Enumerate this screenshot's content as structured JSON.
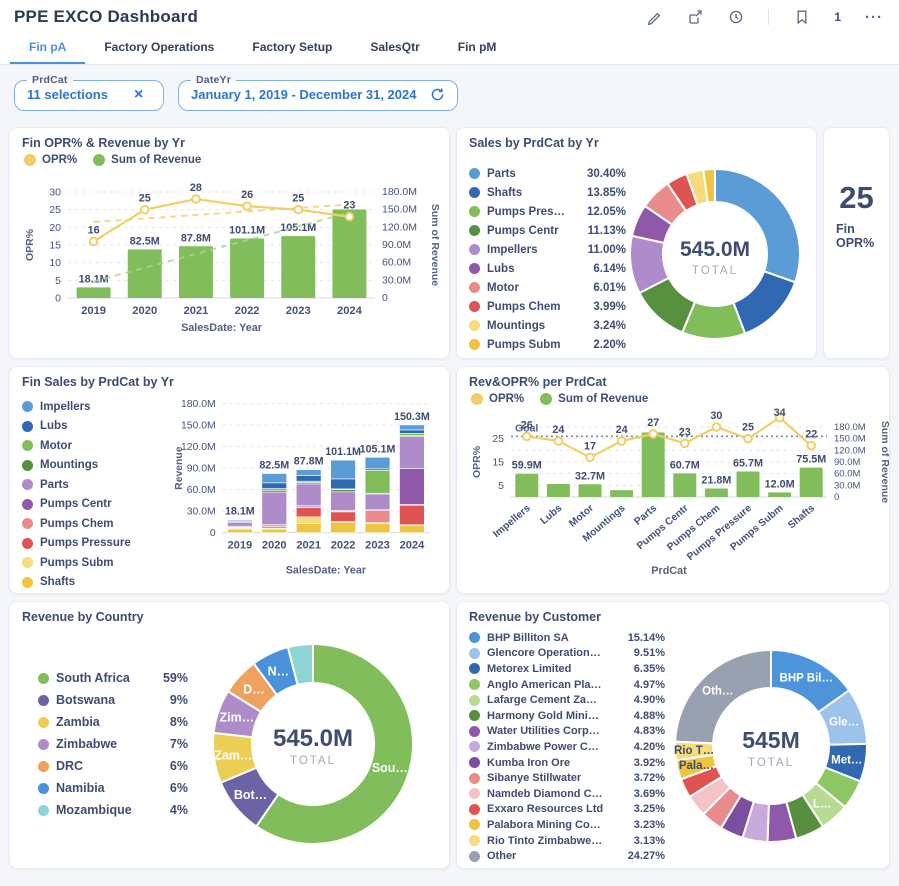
{
  "header": {
    "title": "PPE EXCO Dashboard",
    "count": "1"
  },
  "tabs": {
    "items": [
      {
        "label": "Fin pA",
        "active": true
      },
      {
        "label": "Factory Operations",
        "active": false
      },
      {
        "label": "Factory Setup",
        "active": false
      },
      {
        "label": "SalesQtr",
        "active": false
      },
      {
        "label": "Fin pM",
        "active": false
      }
    ]
  },
  "filters": {
    "prdcat": {
      "label": "PrdCat",
      "value": "11 selections"
    },
    "dateyr": {
      "label": "DateYr",
      "value": "January 1, 2019 - December 31, 2024"
    }
  },
  "ui_colors": {
    "accent_blue": "#4A90DA",
    "bar_green": "#82BD5B",
    "line_yellow": "#F2CE68",
    "navy_text": "#3D4C6F",
    "axis_text": "#56617F"
  },
  "cards": {
    "fin_opr_revenue": {
      "title": "Fin OPR% & Revenue by Yr",
      "legend": [
        {
          "label": "OPR%",
          "color": "#F2CE68"
        },
        {
          "label": "Sum of Revenue",
          "color": "#82BD5B"
        }
      ],
      "chart_data": {
        "type": "combo",
        "categories": [
          "2019",
          "2020",
          "2021",
          "2022",
          "2023",
          "2024"
        ],
        "bars": {
          "name": "Sum of Revenue",
          "axis": "right",
          "color": "#82BD5B",
          "values": [
            18.1,
            82.5,
            87.8,
            101.1,
            105.1,
            150.3
          ],
          "labels": [
            "18.1M",
            "82.5M",
            "87.8M",
            "101.1M",
            "105.1M",
            null
          ]
        },
        "line": {
          "name": "OPR%",
          "axis": "left",
          "color": "#F2CE68",
          "values": [
            16,
            25,
            28,
            26,
            25,
            23
          ],
          "labels": [
            "16",
            "25",
            "28",
            "26",
            "25",
            "23"
          ]
        },
        "trends": [
          {
            "axis": "left",
            "color": "#F2CE68",
            "from": 21.5,
            "to": 26.5
          },
          {
            "axis": "right",
            "color": "#A9D78F",
            "from": 28,
            "to": 145
          }
        ],
        "left_axis": {
          "title": "OPR%",
          "min": 0,
          "max": 30,
          "ticks": [
            0,
            5,
            10,
            15,
            20,
            25,
            30
          ]
        },
        "right_axis": {
          "title": "Sum of Revenue",
          "min": 0,
          "max": 180,
          "ticks": [
            0,
            30,
            60,
            90,
            120,
            150,
            180
          ],
          "tick_labels": [
            "0",
            "30.0M",
            "60.0M",
            "90.0M",
            "120.0M",
            "150.0M",
            "180.0M"
          ]
        },
        "xlabel": "SalesDate: Year"
      }
    },
    "sales_by_prdcat": {
      "title": "Sales by PrdCat by Yr",
      "total": "545.0M",
      "total_label": "TOTAL",
      "chart_data": {
        "type": "donut",
        "slices": [
          {
            "label": "Parts",
            "pct": 30.4,
            "display": "30.40%",
            "color": "#5C9CD6"
          },
          {
            "label": "Shafts",
            "pct": 13.85,
            "display": "13.85%",
            "color": "#3068B2"
          },
          {
            "label": "Pumps Pres…",
            "pct": 12.05,
            "display": "12.05%",
            "color": "#82BD5B"
          },
          {
            "label": "Pumps Centr",
            "pct": 11.13,
            "display": "11.13%",
            "color": "#579140"
          },
          {
            "label": "Impellers",
            "pct": 11.0,
            "display": "11.00%",
            "color": "#AE8CC9"
          },
          {
            "label": "Lubs",
            "pct": 6.14,
            "display": "6.14%",
            "color": "#8F58A8"
          },
          {
            "label": "Motor",
            "pct": 6.01,
            "display": "6.01%",
            "color": "#E98C8B"
          },
          {
            "label": "Pumps Chem",
            "pct": 3.99,
            "display": "3.99%",
            "color": "#DF5353"
          },
          {
            "label": "Mountings",
            "pct": 3.24,
            "display": "3.24%",
            "color": "#F6DC7D"
          },
          {
            "label": "Pumps Subm",
            "pct": 2.2,
            "display": "2.20%",
            "color": "#EFC440"
          }
        ]
      }
    },
    "fin_opr_kpi": {
      "value": "25",
      "label": "Fin OPR%"
    },
    "fin_sales_stacked": {
      "title": "Fin Sales by PrdCat by Yr",
      "chart_data": {
        "type": "stacked-bar",
        "categories": [
          "2019",
          "2020",
          "2021",
          "2022",
          "2023",
          "2024"
        ],
        "totals": [
          "18.1M",
          "82.5M",
          "87.8M",
          "101.1M",
          "105.1M",
          "150.3M"
        ],
        "total_values": [
          18.1,
          82.5,
          87.8,
          101.1,
          105.1,
          150.3
        ],
        "series": [
          {
            "name": "Impellers",
            "color": "#5C9CD6",
            "values": [
              1.5,
              13,
              8,
              26.1,
              16.1,
              7
            ]
          },
          {
            "name": "Lubs",
            "color": "#3068B2",
            "values": [
              0.5,
              8,
              8,
              14,
              2,
              5
            ]
          },
          {
            "name": "Motor",
            "color": "#82BD5B",
            "values": [
              0.6,
              3,
              1.8,
              1,
              32,
              3
            ]
          },
          {
            "name": "Mountings",
            "color": "#579140",
            "values": [
              0.5,
              2,
              2,
              3,
              1,
              1
            ]
          },
          {
            "name": "Parts",
            "color": "#AE8CC9",
            "values": [
              6,
              45,
              30,
              26,
              22,
              45
            ]
          },
          {
            "name": "Pumps Centr",
            "color": "#8F58A8",
            "values": [
              1,
              2,
              2,
              1,
              1,
              50
            ]
          },
          {
            "name": "Pumps Chem",
            "color": "#E98C8B",
            "values": [
              0.5,
              1.5,
              1,
              0.5,
              17,
              0.3
            ]
          },
          {
            "name": "Pumps Pressure",
            "color": "#DF5353",
            "values": [
              1.5,
              2,
              13,
              14,
              0.5,
              28
            ]
          },
          {
            "name": "Pumps Subm",
            "color": "#F6DC7D",
            "values": [
              1,
              1,
              9,
              0.5,
              0.5,
              1
            ]
          },
          {
            "name": "Shafts",
            "color": "#EFC440",
            "values": [
              5,
              5,
              13,
              15,
              13,
              10
            ]
          }
        ],
        "y_axis": {
          "title": "Revenue",
          "min": 0,
          "max": 180,
          "ticks": [
            0,
            30,
            60,
            90,
            120,
            150,
            180
          ],
          "tick_labels": [
            "0",
            "30.0M",
            "60.0M",
            "90.0M",
            "120.0M",
            "150.0M",
            "180.0M"
          ]
        },
        "xlabel": "SalesDate: Year"
      }
    },
    "rev_opr_prdcat": {
      "title": "Rev&OPR% per PrdCat",
      "legend": [
        {
          "label": "OPR%",
          "color": "#F2CE68"
        },
        {
          "label": "Sum of Revenue",
          "color": "#82BD5B"
        }
      ],
      "chart_data": {
        "type": "combo",
        "categories": [
          "Impellers",
          "Lubs",
          "Motor",
          "Mountings",
          "Parts",
          "Pumps Centr",
          "Pumps Chem",
          "Pumps Pressure",
          "Pumps Subm",
          "Shafts"
        ],
        "bars": {
          "name": "Sum of Revenue",
          "axis": "right",
          "color": "#82BD5B",
          "values": [
            59.9,
            33.5,
            32.7,
            17.7,
            165.7,
            60.7,
            21.8,
            65.7,
            12.0,
            75.5
          ],
          "labels": [
            "59.9M",
            null,
            "32.7M",
            null,
            null,
            "60.7M",
            "21.8M",
            "65.7M",
            "12.0M",
            "75.5M"
          ]
        },
        "line": {
          "name": "OPR%",
          "axis": "left",
          "color": "#F2CE68",
          "values": [
            26,
            24,
            17,
            24,
            27,
            23,
            30,
            25,
            34,
            22
          ],
          "labels": [
            "26",
            "24",
            "17",
            "24",
            "27",
            "23",
            "30",
            "25",
            "34",
            "22"
          ]
        },
        "goal": {
          "label": "Goal",
          "axis": "left",
          "value": 26
        },
        "left_axis": {
          "title": "OPR%",
          "min": 0,
          "max": 30,
          "ticks": [
            5,
            15,
            25
          ]
        },
        "right_axis": {
          "title": "Sum of Revenue",
          "min": 0,
          "max": 180,
          "ticks": [
            0,
            30,
            60,
            90,
            120,
            150,
            180
          ],
          "tick_labels": [
            "0",
            "30.0M",
            "60.0M",
            "90.0M",
            "120.0M",
            "150.0M",
            "180.0M"
          ]
        },
        "xlabel": "PrdCat"
      }
    },
    "revenue_by_country": {
      "title": "Revenue by Country",
      "total": "545.0M",
      "total_label": "TOTAL",
      "chart_data": {
        "type": "donut",
        "slices": [
          {
            "label": "South Africa",
            "pct": 59,
            "display": "59%",
            "color": "#82BD5B",
            "slice_label": "Sou…"
          },
          {
            "label": "Botswana",
            "pct": 9,
            "display": "9%",
            "color": "#6B63A5",
            "slice_label": "Bot…"
          },
          {
            "label": "Zambia",
            "pct": 8,
            "display": "8%",
            "color": "#EDCE55",
            "slice_label": "Zam…"
          },
          {
            "label": "Zimbabwe",
            "pct": 7,
            "display": "7%",
            "color": "#AE8CC9",
            "slice_label": "Zim…"
          },
          {
            "label": "DRC",
            "pct": 6,
            "display": "6%",
            "color": "#EFA15E",
            "slice_label": "D…"
          },
          {
            "label": "Namibia",
            "pct": 6,
            "display": "6%",
            "color": "#4A90DA",
            "slice_label": "N…"
          },
          {
            "label": "Mozambique",
            "pct": 4,
            "display": "4%",
            "color": "#8FD4D4"
          }
        ]
      }
    },
    "revenue_by_customer": {
      "title": "Revenue by Customer",
      "total": "545M",
      "total_label": "TOTAL",
      "chart_data": {
        "type": "donut",
        "slices": [
          {
            "label": "BHP Billiton SA",
            "pct": 15.14,
            "display": "15.14%",
            "color": "#4E94DB",
            "slice_label": "BHP Bil…"
          },
          {
            "label": "Glencore Operation…",
            "pct": 9.51,
            "display": "9.51%",
            "color": "#9DC3ED",
            "slice_label": "Gle…"
          },
          {
            "label": "Metorex Limited",
            "pct": 6.35,
            "display": "6.35%",
            "color": "#3068B2",
            "slice_label": "Met…"
          },
          {
            "label": "Anglo American Pla…",
            "pct": 4.97,
            "display": "4.97%",
            "color": "#8FC765"
          },
          {
            "label": "Lafarge Cement Za…",
            "pct": 4.9,
            "display": "4.90%",
            "color": "#B8DB92",
            "slice_label": "L…"
          },
          {
            "label": "Harmony Gold Mini…",
            "pct": 4.88,
            "display": "4.88%",
            "color": "#578F3F"
          },
          {
            "label": "Water Utilities Corp…",
            "pct": 4.83,
            "display": "4.83%",
            "color": "#8F58A8"
          },
          {
            "label": "Zimbabwe Power C…",
            "pct": 4.2,
            "display": "4.20%",
            "color": "#C7A9DC"
          },
          {
            "label": "Kumba Iron Ore",
            "pct": 3.92,
            "display": "3.92%",
            "color": "#7B4FA0"
          },
          {
            "label": "Sibanye Stillwater",
            "pct": 3.72,
            "display": "3.72%",
            "color": "#E98C8B"
          },
          {
            "label": "Namdeb Diamond C…",
            "pct": 3.69,
            "display": "3.69%",
            "color": "#F5C2C8"
          },
          {
            "label": "Exxaro Resources Ltd",
            "pct": 3.25,
            "display": "3.25%",
            "color": "#DF5353"
          },
          {
            "label": "Palabora Mining Co…",
            "pct": 3.23,
            "display": "3.23%",
            "color": "#EFC440",
            "slice_label": "Pala…",
            "slice_label_color": "#3D4C6F"
          },
          {
            "label": "Rio Tinto Zimbabwe…",
            "pct": 3.13,
            "display": "3.13%",
            "color": "#F6DC7D",
            "slice_label": "Rio T…",
            "slice_label_color": "#3D4C6F"
          },
          {
            "label": "Other",
            "pct": 24.27,
            "display": "24.27%",
            "color": "#99A0B0",
            "slice_label": "Oth…"
          }
        ]
      }
    }
  }
}
